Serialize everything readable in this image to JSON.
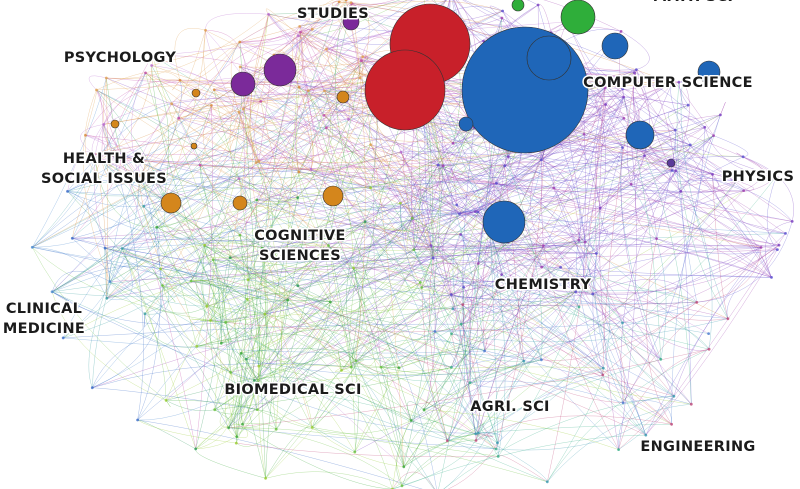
{
  "labels": [
    {
      "lines": [
        "STUDIES"
      ]
    },
    {
      "lines": [
        "MATH SCI"
      ]
    },
    {
      "lines": [
        "PSYCHOLOGY"
      ]
    },
    {
      "lines": [
        "COMPUTER SCIENCE"
      ]
    },
    {
      "lines": [
        "HEALTH &",
        "SOCIAL ISSUES"
      ]
    },
    {
      "lines": [
        "PHYSICS"
      ]
    },
    {
      "lines": [
        "COGNITIVE",
        "SCIENCES"
      ]
    },
    {
      "lines": [
        "CHEMISTRY"
      ]
    },
    {
      "lines": [
        "CLINICAL",
        "MEDICINE"
      ]
    },
    {
      "lines": [
        "BIOMEDICAL SCI"
      ]
    },
    {
      "lines": [
        "AGRI. SCI"
      ]
    },
    {
      "lines": [
        "ENGINEERING"
      ]
    }
  ]
}
